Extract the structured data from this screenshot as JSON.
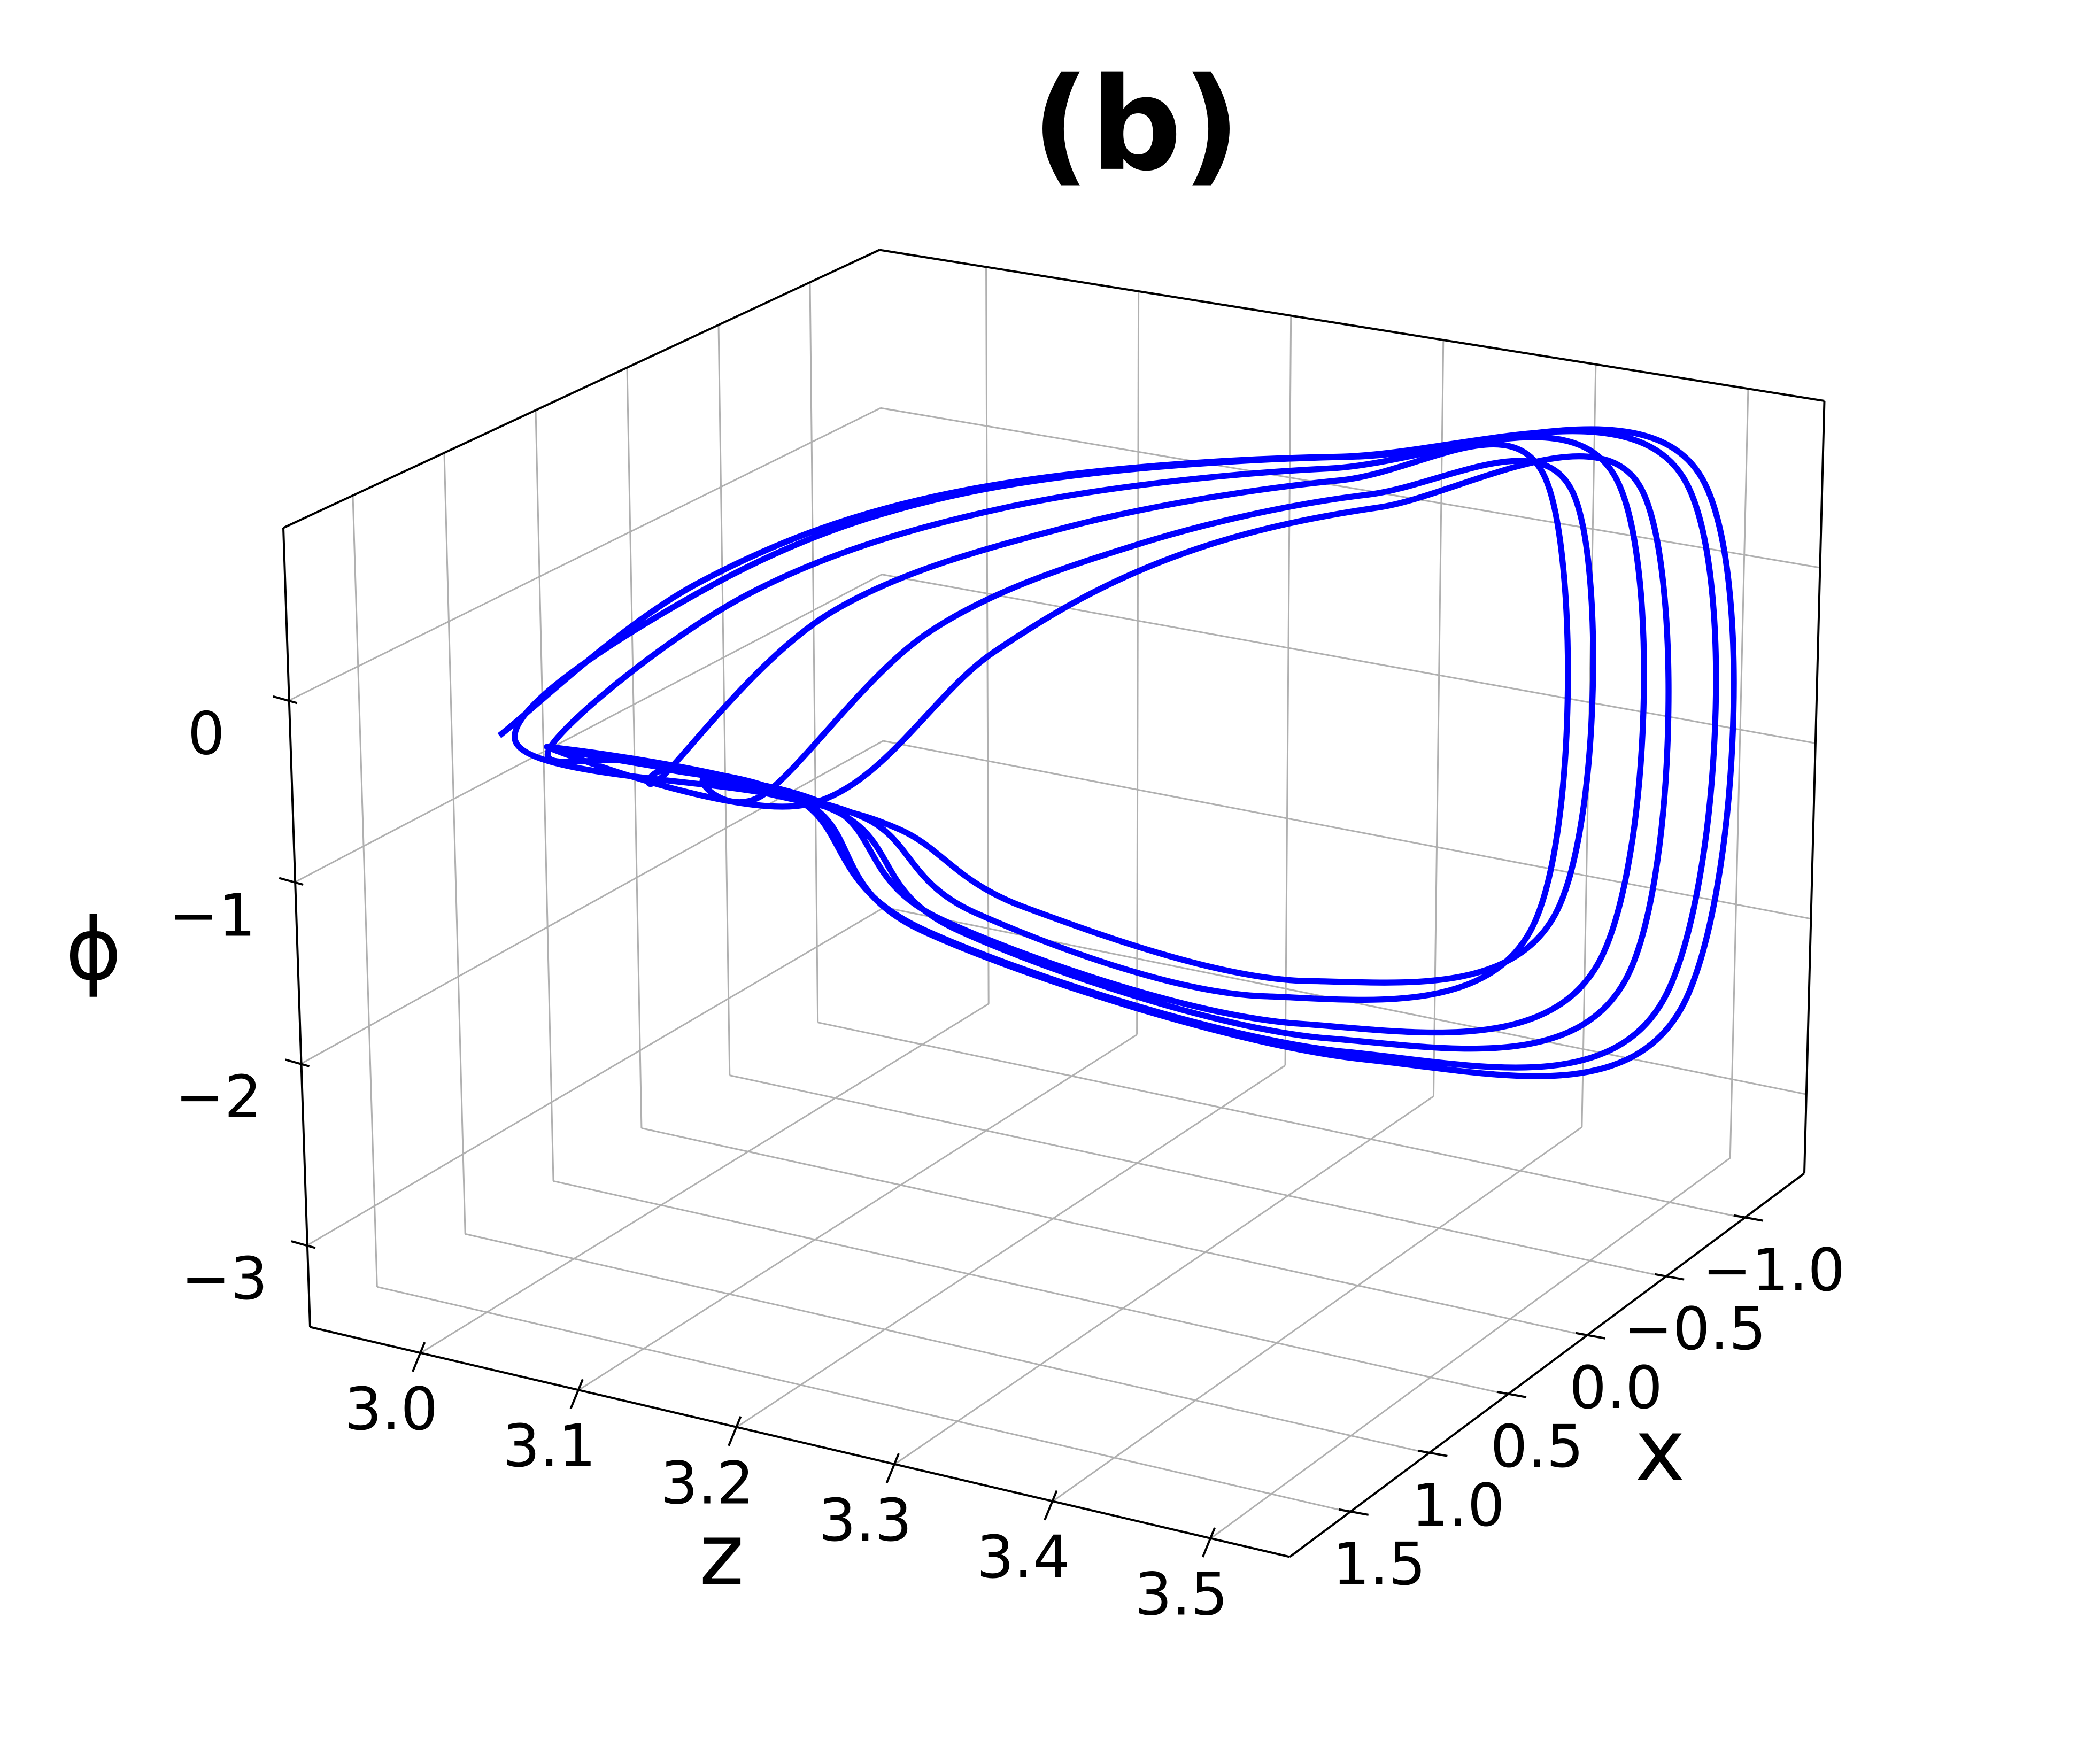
{
  "chart_data": {
    "type": "line3d",
    "title": "(b)",
    "zlabel": "z",
    "xlabel": "x",
    "philabel": "ϕ",
    "zlim": [
      2.93,
      3.55
    ],
    "xlim": [
      -1.38,
      1.88
    ],
    "philim": [
      -3.45,
      0.95
    ],
    "zticks": [
      {
        "value": 3,
        "label": "3.0"
      },
      3.1,
      3.2,
      3.3,
      3.4,
      3.5
    ],
    "xticks": [
      {
        "value": -1,
        "label": "−1.0"
      },
      {
        "value": -0.5,
        "label": "−0.5"
      },
      {
        "value": 0,
        "label": "0.0"
      },
      0.5,
      {
        "value": 1,
        "label": "1.0"
      },
      1.5
    ],
    "phiticks": [
      {
        "value": -3,
        "label": "−3"
      },
      {
        "value": -2,
        "label": "−2"
      },
      {
        "value": -1,
        "label": "−1"
      },
      0
    ],
    "grid": true,
    "series": [
      {
        "color": "#0000ff",
        "z": [
          2.93,
          3.02,
          3.15,
          3.33,
          3.51,
          3.52,
          3.4,
          3.18,
          3.12,
          3.02,
          2.96,
          3.05,
          3.18,
          3.33,
          3.47,
          3.48,
          3.37,
          3.19,
          3.14,
          3.04,
          3.03,
          3.1,
          3.22,
          3.34,
          3.43,
          3.44,
          3.35,
          3.21,
          3.16,
          3.06,
          3.09,
          3.16,
          3.26,
          3.36,
          3.45,
          3.46,
          3.38,
          3.24,
          3.18,
          3.1,
          2.94,
          3.03,
          3.16,
          3.34,
          3.52,
          3.53,
          3.41,
          3.18,
          3.12,
          2.96,
          3.12,
          3.2,
          3.28,
          3.37,
          3.49,
          3.5,
          3.39,
          3.2,
          3.14,
          2.97
        ],
        "x": [
          0.74,
          0.41,
          0.09,
          -0.47,
          -0.89,
          -0.73,
          0.09,
          0.58,
          0.74,
          0.74,
          0.72,
          0.4,
          0.1,
          -0.42,
          -0.85,
          -0.7,
          0.1,
          0.56,
          0.73,
          0.74,
          0.7,
          0.38,
          0.08,
          -0.4,
          -0.8,
          -0.66,
          0.12,
          0.55,
          0.72,
          0.73,
          0.68,
          0.36,
          0.06,
          -0.38,
          -0.78,
          -0.62,
          0.14,
          0.54,
          0.71,
          0.72,
          0.74,
          0.42,
          0.1,
          -0.46,
          -0.9,
          -0.75,
          0.08,
          0.58,
          0.74,
          0.74,
          0.7,
          0.35,
          0.05,
          -0.35,
          -0.82,
          -0.68,
          0.11,
          0.57,
          0.73,
          0.74
        ],
        "phi": [
          -0.78,
          0.07,
          0.64,
          0.82,
          0.73,
          -2.11,
          -2.09,
          -1.51,
          -0.81,
          -0.77,
          -0.8,
          0.05,
          0.6,
          0.78,
          0.7,
          -1.95,
          -1.98,
          -1.45,
          -0.82,
          -0.78,
          -0.84,
          0.02,
          0.55,
          0.74,
          0.66,
          -1.8,
          -1.85,
          -1.38,
          -0.85,
          -0.8,
          -0.86,
          0.0,
          0.5,
          0.7,
          0.62,
          -1.65,
          -1.7,
          -1.3,
          -0.88,
          -0.82,
          -0.79,
          0.08,
          0.66,
          0.84,
          0.75,
          -2.15,
          -2.12,
          -1.52,
          -0.8,
          -0.79,
          -0.85,
          -0.05,
          0.45,
          0.66,
          0.68,
          -2.0,
          -2.02,
          -1.48,
          -0.83,
          -0.79
        ]
      }
    ]
  }
}
